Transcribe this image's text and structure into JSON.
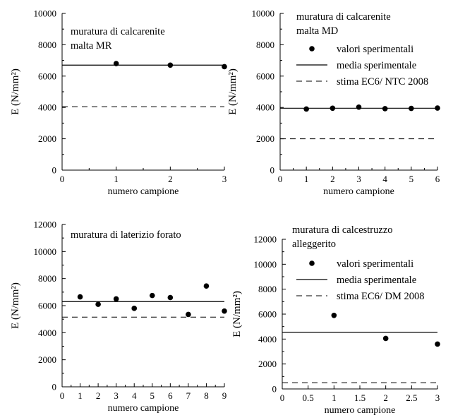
{
  "chart_data": [
    {
      "type": "scatter",
      "annotation": [
        "muratura di calcarenite",
        "malta MR"
      ],
      "xlabel": "numero campione",
      "ylabel": "E (N/mm²)",
      "xlim": [
        0,
        3
      ],
      "ylim": [
        0,
        10000
      ],
      "xticks": [
        0,
        1,
        2,
        3
      ],
      "yticks": [
        0,
        2000,
        4000,
        6000,
        8000,
        10000
      ],
      "points": [
        {
          "x": 1,
          "y": 6800
        },
        {
          "x": 2,
          "y": 6700
        },
        {
          "x": 3,
          "y": 6600
        }
      ],
      "mean": 6700,
      "estimate": 4050,
      "legend": []
    },
    {
      "type": "scatter",
      "annotation": [
        "muratura di calcarenite",
        "malta MD"
      ],
      "xlabel": "numero campione",
      "ylabel": "E (N/mm²)",
      "xlim": [
        0,
        6
      ],
      "ylim": [
        0,
        10000
      ],
      "xticks": [
        0,
        1,
        2,
        3,
        4,
        5,
        6
      ],
      "yticks": [
        0,
        2000,
        4000,
        6000,
        8000,
        10000
      ],
      "points": [
        {
          "x": 1,
          "y": 3900
        },
        {
          "x": 2,
          "y": 3950
        },
        {
          "x": 3,
          "y": 4020
        },
        {
          "x": 4,
          "y": 3920
        },
        {
          "x": 5,
          "y": 3940
        },
        {
          "x": 6,
          "y": 3960
        }
      ],
      "mean": 3950,
      "estimate": 2000,
      "legend": [
        "valori sperimentali",
        "media sperimentale",
        "stima EC6/ NTC 2008"
      ]
    },
    {
      "type": "scatter",
      "annotation": [
        "muratura di laterizio forato"
      ],
      "xlabel": "numero campione",
      "ylabel": "E (N/mm²)",
      "xlim": [
        0,
        9
      ],
      "ylim": [
        0,
        12000
      ],
      "xticks": [
        0,
        1,
        2,
        3,
        4,
        5,
        6,
        7,
        8,
        9
      ],
      "yticks": [
        0,
        2000,
        4000,
        6000,
        8000,
        10000,
        12000
      ],
      "points": [
        {
          "x": 1,
          "y": 6650
        },
        {
          "x": 2,
          "y": 6100
        },
        {
          "x": 3,
          "y": 6500
        },
        {
          "x": 4,
          "y": 5800
        },
        {
          "x": 5,
          "y": 6750
        },
        {
          "x": 6,
          "y": 6600
        },
        {
          "x": 7,
          "y": 5350
        },
        {
          "x": 8,
          "y": 7450
        },
        {
          "x": 9,
          "y": 5600
        }
      ],
      "mean": 6300,
      "estimate": 5150,
      "legend": []
    },
    {
      "type": "scatter",
      "annotation": [
        "muratura di calcestruzzo",
        "alleggerito"
      ],
      "xlabel": "numero campione",
      "ylabel": "E (N/mm²)",
      "xlim": [
        0,
        3
      ],
      "ylim": [
        0,
        12000
      ],
      "xticks": [
        0,
        0.5,
        1,
        1.5,
        2,
        2.5,
        3
      ],
      "yticks": [
        0,
        2000,
        4000,
        6000,
        8000,
        10000,
        12000
      ],
      "points": [
        {
          "x": 1,
          "y": 5900
        },
        {
          "x": 2,
          "y": 4050
        },
        {
          "x": 3,
          "y": 3600
        }
      ],
      "mean": 4550,
      "estimate": 500,
      "legend": [
        "valori sperimentali",
        "media sperimentale",
        "stima EC6/ DM 2008"
      ]
    }
  ]
}
